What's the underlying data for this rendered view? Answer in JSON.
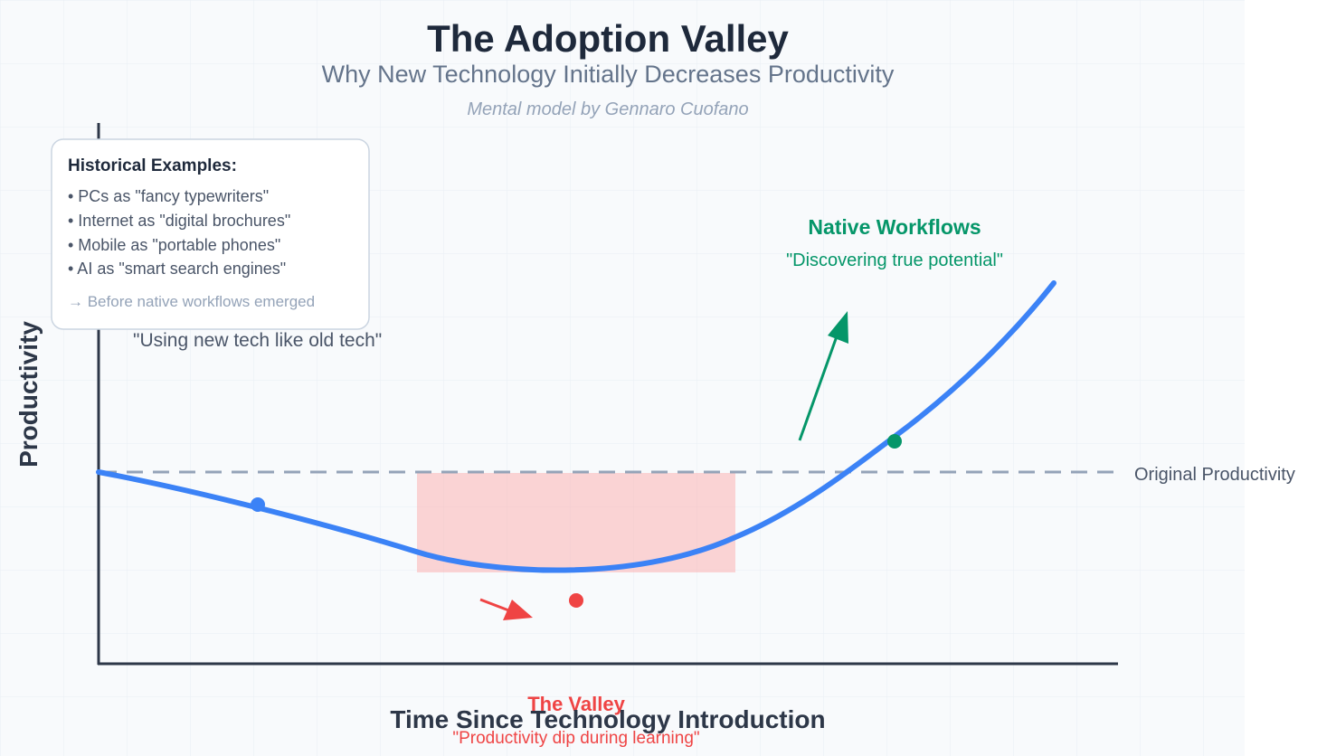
{
  "title": "The Adoption Valley",
  "subtitle": "Why New Technology Initially Decreases Productivity",
  "byline": "Mental model by Gennaro Cuofano",
  "axes": {
    "x_label": "Time Since Technology Introduction",
    "y_label": "Productivity"
  },
  "baseline": {
    "label": "Original Productivity"
  },
  "early_phase": {
    "quote": "\"Using new tech like old tech\""
  },
  "valley": {
    "title": "The Valley",
    "quote": "\"Productivity dip during learning\""
  },
  "native": {
    "title": "Native Workflows",
    "quote": "\"Discovering true potential\""
  },
  "examples_box": {
    "title": "Historical Examples:",
    "items": [
      "• PCs as \"fancy typewriters\"",
      "• Internet as \"digital brochures\"",
      "• Mobile as \"portable phones\"",
      "• AI as \"smart search engines\""
    ],
    "footer": "→ Before native workflows emerged"
  },
  "colors": {
    "curve": "#3b82f6",
    "valley": "#ef4444",
    "native": "#059669",
    "baseline": "#94a3b8",
    "axis": "#2d3748",
    "grid": "#e9eef4",
    "background": "#f8fafc"
  }
}
